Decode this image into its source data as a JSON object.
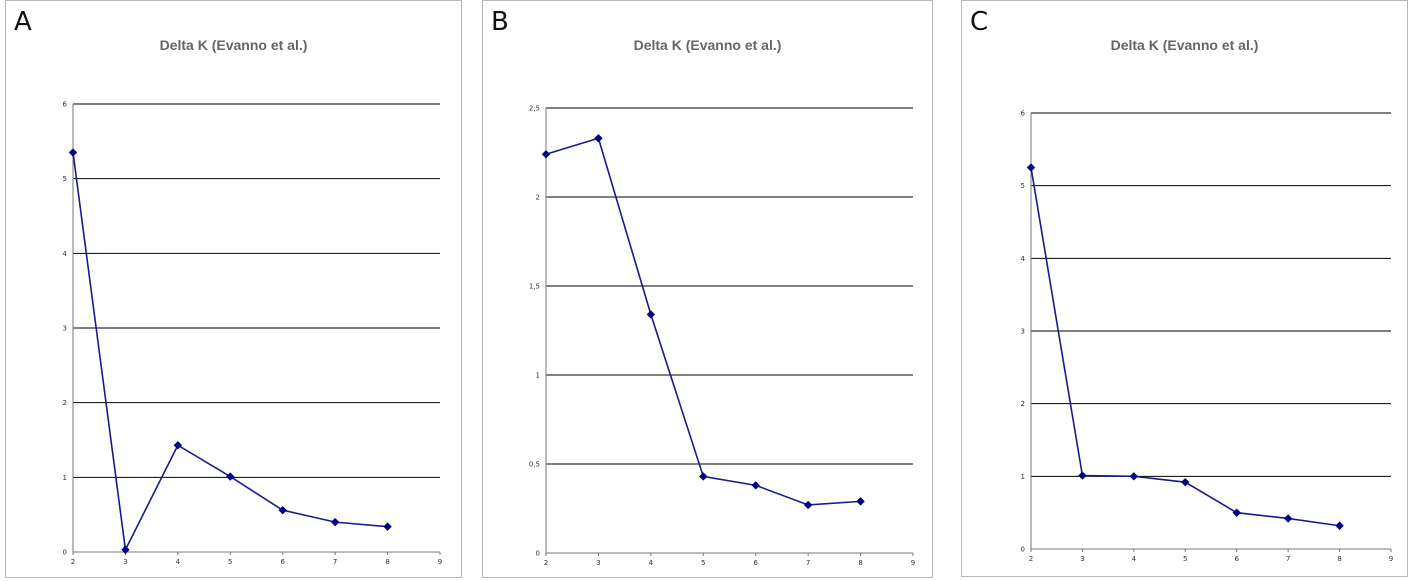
{
  "panels": [
    {
      "letter": "A",
      "title": "Delta K (Evanno et al.)"
    },
    {
      "letter": "B",
      "title": "Delta K (Evanno et al.)"
    },
    {
      "letter": "C",
      "title": "Delta K (Evanno et al.)"
    }
  ],
  "colors": {
    "series": "#1a1a8c",
    "marker": "#000080",
    "grid": "#000000"
  },
  "chart_data": [
    {
      "type": "line",
      "title": "Delta K (Evanno et al.)",
      "x": [
        2,
        3,
        4,
        5,
        6,
        7,
        8
      ],
      "series": [
        {
          "values": [
            5.35,
            0.03,
            1.43,
            1.01,
            0.56,
            0.4,
            0.34
          ]
        }
      ],
      "xlim": [
        2,
        9
      ],
      "ylim": [
        0,
        6
      ],
      "yticks": [
        0,
        1,
        2,
        3,
        4,
        5,
        6
      ],
      "ytick_labels": [
        "0",
        "1",
        "2",
        "3",
        "4",
        "5",
        "6"
      ],
      "xticks": [
        2,
        3,
        4,
        5,
        6,
        7,
        8,
        9
      ],
      "grid": true,
      "marker": "diamond"
    },
    {
      "type": "line",
      "title": "Delta K (Evanno et al.)",
      "x": [
        2,
        3,
        4,
        5,
        6,
        7,
        8
      ],
      "series": [
        {
          "values": [
            2.24,
            2.33,
            1.34,
            0.43,
            0.38,
            0.27,
            0.29
          ]
        }
      ],
      "xlim": [
        2,
        9
      ],
      "ylim": [
        0,
        2.5
      ],
      "yticks": [
        0,
        0.5,
        1,
        1.5,
        2,
        2.5
      ],
      "ytick_labels": [
        "0",
        "0,5",
        "1",
        "1,5",
        "2",
        "2,5"
      ],
      "xticks": [
        2,
        3,
        4,
        5,
        6,
        7,
        8,
        9
      ],
      "grid": true,
      "marker": "diamond"
    },
    {
      "type": "line",
      "title": "Delta K (Evanno et al.)",
      "x": [
        2,
        3,
        4,
        5,
        6,
        7,
        8
      ],
      "series": [
        {
          "values": [
            5.25,
            1.01,
            1.0,
            0.92,
            0.5,
            0.42,
            0.32
          ]
        }
      ],
      "xlim": [
        2,
        9
      ],
      "ylim": [
        0,
        6
      ],
      "yticks": [
        0,
        1,
        2,
        3,
        4,
        5,
        6
      ],
      "ytick_labels": [
        "0",
        "1",
        "2",
        "3",
        "4",
        "5",
        "6"
      ],
      "xticks": [
        2,
        3,
        4,
        5,
        6,
        7,
        8,
        9
      ],
      "grid": true,
      "marker": "diamond"
    }
  ]
}
